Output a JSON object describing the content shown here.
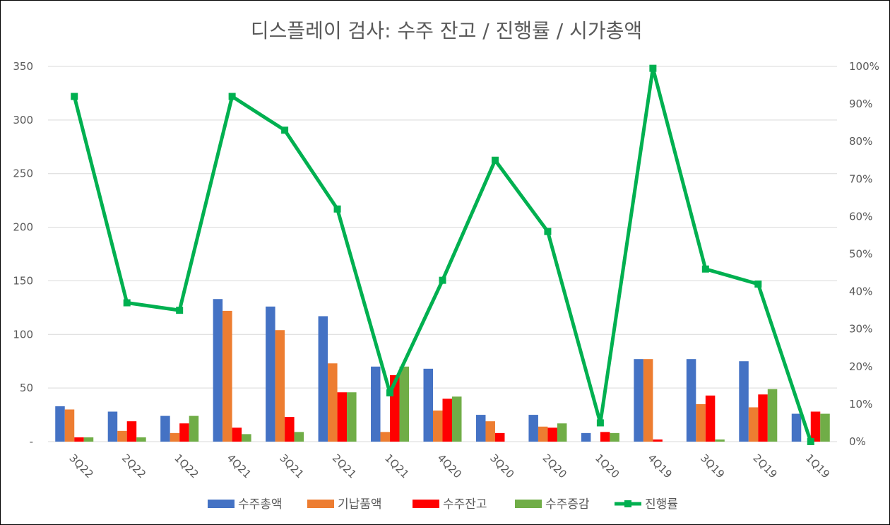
{
  "chart_data": {
    "type": "bar",
    "title": "디스플레이 검사: 수주 잔고 / 진행률 / 시가총액",
    "categories": [
      "3Q22",
      "2Q22",
      "1Q22",
      "4Q21",
      "3Q21",
      "2Q21",
      "1Q21",
      "4Q20",
      "3Q20",
      "2Q20",
      "1Q20",
      "4Q19",
      "3Q19",
      "2Q19",
      "1Q19"
    ],
    "y_left": {
      "ylim": [
        0,
        350
      ],
      "ticks": [
        "-",
        "50",
        "100",
        "150",
        "200",
        "250",
        "300",
        "350"
      ]
    },
    "y_right": {
      "ylim": [
        0,
        1
      ],
      "ticks": [
        "0%",
        "10%",
        "20%",
        "30%",
        "40%",
        "50%",
        "60%",
        "70%",
        "80%",
        "90%",
        "100%"
      ]
    },
    "grid": true,
    "legend_position": "bottom",
    "series": [
      {
        "name": "수주총액",
        "type": "bar",
        "axis": "left",
        "color": "#4472C4",
        "values": [
          33,
          28,
          24,
          133,
          126,
          117,
          70,
          68,
          25,
          25,
          8,
          77,
          77,
          75,
          26
        ]
      },
      {
        "name": "기납품액",
        "type": "bar",
        "axis": "left",
        "color": "#ED7D31",
        "values": [
          30,
          10,
          8,
          122,
          104,
          73,
          9,
          29,
          19,
          14,
          0,
          77,
          35,
          32,
          0
        ]
      },
      {
        "name": "수주잔고",
        "type": "bar",
        "axis": "left",
        "color": "#FF0000",
        "values": [
          4,
          19,
          17,
          13,
          23,
          46,
          62,
          40,
          8,
          13,
          9,
          2,
          43,
          44,
          28
        ]
      },
      {
        "name": "수주증감",
        "type": "bar",
        "axis": "left",
        "color": "#70AD47",
        "values": [
          4,
          4,
          24,
          7,
          9,
          46,
          70,
          42,
          0,
          17,
          8,
          0,
          2,
          49,
          26
        ]
      },
      {
        "name": "진행률",
        "type": "line",
        "axis": "right",
        "color": "#00B050",
        "values": [
          0.92,
          0.37,
          0.35,
          0.92,
          0.83,
          0.62,
          0.13,
          0.43,
          0.75,
          0.56,
          0.05,
          0.995,
          0.46,
          0.42,
          0.0
        ]
      }
    ]
  }
}
